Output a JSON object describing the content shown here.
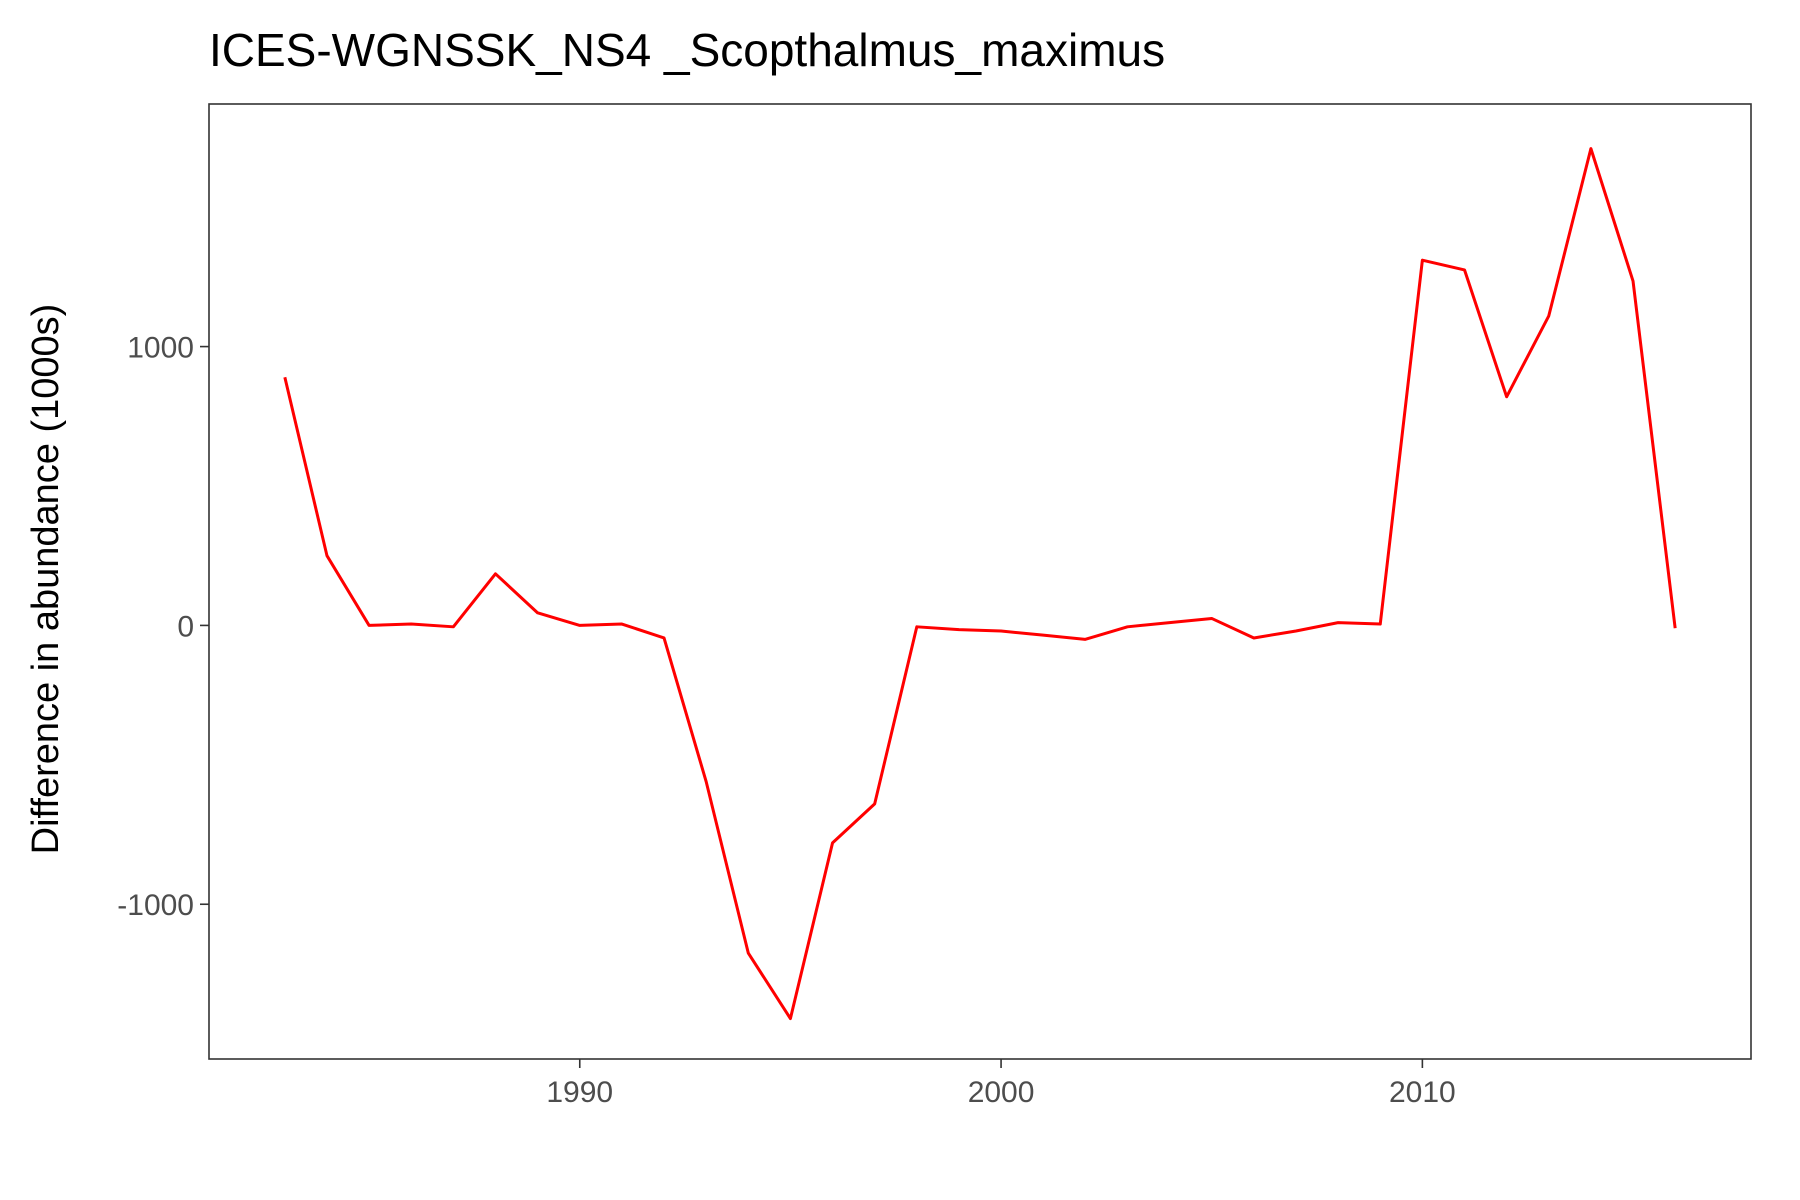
{
  "chart_data": {
    "type": "line",
    "title": "ICES-WGNSSK_NS4 _Scopthalmus_maximus",
    "xlabel": "",
    "ylabel": "Difference in abundance (1000s)",
    "xlim": [
      1981.2,
      2017.8
    ],
    "ylim": [
      -1555,
      1870
    ],
    "x_ticks": [
      1990,
      2000,
      2010
    ],
    "x_tick_labels": [
      "1990",
      "2000",
      "2010"
    ],
    "y_ticks": [
      -1000,
      0,
      1000
    ],
    "y_tick_labels": [
      "-1000",
      "0",
      "1000"
    ],
    "grid": false,
    "legend": "none",
    "line_color": "#ff0000",
    "x": [
      1983,
      1984,
      1985,
      1986,
      1987,
      1988,
      1989,
      1990,
      1991,
      1992,
      1993,
      1994,
      1995,
      1996,
      1997,
      1998,
      1999,
      2000,
      2001,
      2002,
      2003,
      2004,
      2005,
      2006,
      2007,
      2008,
      2009,
      2010,
      2011,
      2012,
      2013,
      2014,
      2015,
      2016
    ],
    "y": [
      890,
      250,
      0,
      5,
      -5,
      185,
      45,
      0,
      5,
      -45,
      -560,
      -1175,
      -1410,
      -780,
      -640,
      -5,
      -15,
      -20,
      -35,
      -50,
      -5,
      10,
      25,
      -45,
      -20,
      10,
      5,
      1310,
      1275,
      820,
      1110,
      1710,
      1235,
      -10
    ]
  }
}
